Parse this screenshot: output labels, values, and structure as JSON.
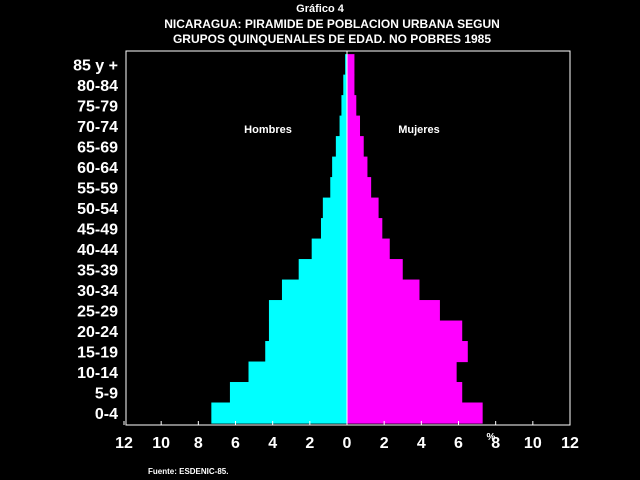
{
  "header": {
    "figure_label": "Gráfico 4",
    "title_line1": "NICARAGUA: PIRAMIDE DE POBLACION URBANA SEGUN",
    "title_line2": "GRUPOS QUINQUENALES DE EDAD. NO POBRES 1985"
  },
  "source": "Fuente: ESDENIC-85.",
  "x_unit_label": "%",
  "colors": {
    "men": "#00ffff",
    "women": "#ff00ff",
    "background": "#000000",
    "axis": "#ffffff"
  },
  "chart_data": {
    "type": "bar",
    "orientation": "horizontal-pyramid",
    "categories": [
      "0-4",
      "5-9",
      "10-14",
      "15-19",
      "20-24",
      "25-29",
      "30-34",
      "35-39",
      "40-44",
      "45-49",
      "50-54",
      "55-59",
      "60-64",
      "65-69",
      "70-74",
      "75-79",
      "80-84",
      "85 y +"
    ],
    "series": [
      {
        "name": "Hombres",
        "values": [
          7.3,
          6.3,
          5.3,
          4.4,
          4.2,
          4.2,
          3.5,
          2.6,
          1.9,
          1.4,
          1.3,
          0.9,
          0.8,
          0.6,
          0.4,
          0.3,
          0.2,
          0.1
        ]
      },
      {
        "name": "Mujeres",
        "values": [
          7.3,
          6.2,
          5.9,
          6.5,
          6.2,
          5.0,
          3.9,
          3.0,
          2.3,
          1.9,
          1.7,
          1.3,
          1.1,
          0.9,
          0.7,
          0.5,
          0.4,
          0.4
        ]
      }
    ],
    "xticks": [
      "12",
      "10",
      "8",
      "6",
      "4",
      "2",
      "0",
      "2",
      "4",
      "6",
      "8",
      "10",
      "12"
    ],
    "xlim": [
      -12,
      12
    ],
    "xlabel": "%",
    "legend": "inside-top"
  }
}
